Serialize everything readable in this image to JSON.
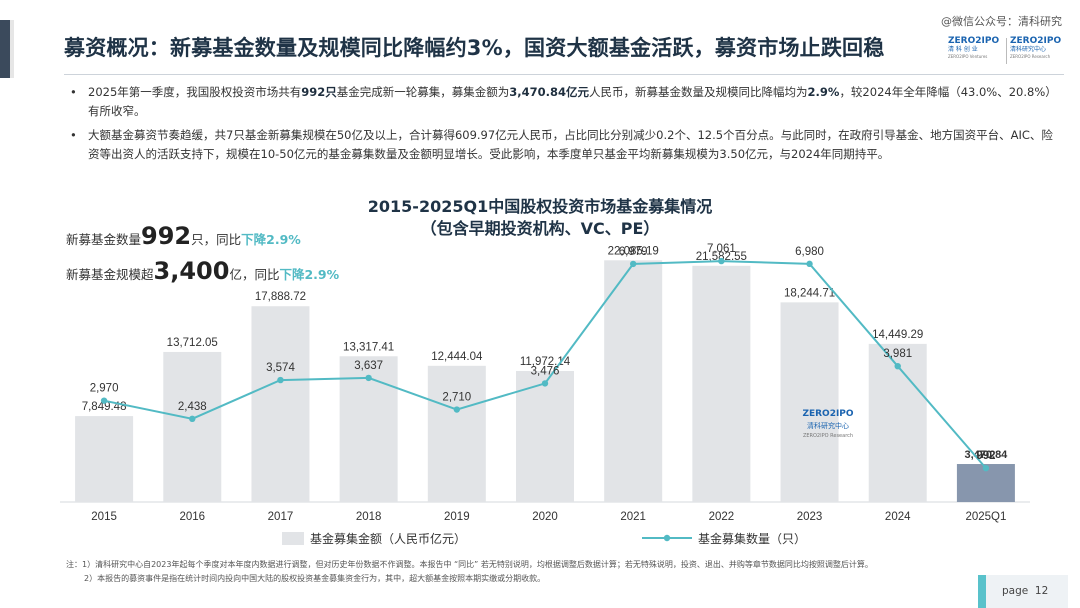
{
  "header": {
    "title": "募资概况：新募基金数量及规模同比降幅约3%，国资大额基金活跃，募资市场止跌回稳",
    "watermark": "@微信公众号：清科研究",
    "logo_left": {
      "line1": "ZERO2IPO",
      "line2": "清 科 创 业",
      "line3": "ZERO2IPO Ventures"
    },
    "logo_right": {
      "line1": "ZERO2IPO",
      "line2": "清科研究中心",
      "line3": "ZERO2IPO Research"
    }
  },
  "bullets": [
    {
      "marker": "•",
      "parts": [
        {
          "t": "2025年第一季度，我国股权投资市场共有",
          "b": false
        },
        {
          "t": "992只",
          "b": true
        },
        {
          "t": "基金完成新一轮募集，募集金额为",
          "b": false
        },
        {
          "t": "3,470.84亿元",
          "b": true
        },
        {
          "t": "人民币，新募基金数量及规模同比降幅均为",
          "b": false
        },
        {
          "t": "2.9%",
          "b": true
        },
        {
          "t": "，较2024年全年降幅（43.0%、20.8%）有所收窄。",
          "b": false
        }
      ]
    },
    {
      "marker": "•",
      "parts": [
        {
          "t": "大额基金募资节奏趋缓，共7只基金新募集规模在50亿及以上，合计募得609.97亿元人民币，占比同比分别减少0.2个、12.5个百分点。与此同时，在政府引导基金、地方国资平台、AIC、险资等出资人的活跃支持下，规模在10-50亿元的基金募集数量及金额明显增长。受此影响，本季度单只基金平均新募集规模为3.50亿元，与2024年同期持平。",
          "b": false
        }
      ]
    }
  ],
  "summary": {
    "count_prefix": "新募基金数量",
    "count_value": "992",
    "count_unit": "只，同比",
    "count_change": "下降2.9%",
    "amount_prefix": "新募基金规模超",
    "amount_value": "3,400",
    "amount_unit": "亿，同比",
    "amount_change": "下降2.9%"
  },
  "chart_data": {
    "type": "bar+line",
    "title": "2015-2025Q1中国股权投资市场基金募集情况",
    "subtitle": "（包含早期投资机构、VC、PE）",
    "categories": [
      "2015",
      "2016",
      "2017",
      "2018",
      "2019",
      "2020",
      "2021",
      "2022",
      "2023",
      "2024",
      "2025Q1"
    ],
    "series": [
      {
        "name": "基金募集金额（人民币亿元）",
        "type": "bar",
        "values": [
          7849.48,
          13712.05,
          17888.72,
          13317.41,
          12444.04,
          11972.14,
          22085.19,
          21582.55,
          18244.71,
          14449.29,
          3470.84
        ],
        "labels": [
          "7,849.48",
          "13,712.05",
          "17,888.72",
          "13,317.41",
          "12,444.04",
          "11,972.14",
          "22,085.19",
          "21,582.55",
          "18,244.71",
          "14,449.29",
          "3,470.84"
        ]
      },
      {
        "name": "基金募集数量（只）",
        "type": "line",
        "values": [
          2970,
          2438,
          3574,
          3637,
          2710,
          3476,
          6979,
          7061,
          6980,
          3981,
          992
        ],
        "labels": [
          "2,970",
          "2,438",
          "3,574",
          "3,637",
          "2,710",
          "3,476",
          "6,979",
          "7,061",
          "6,980",
          "3,981",
          "992"
        ]
      }
    ],
    "bar_ylim": [
      0,
      26500
    ],
    "line_ylim": [
      0,
      8500
    ],
    "colors": {
      "bar": "#e2e4e7",
      "bar_highlight": "#8796ad",
      "line": "#52bac4",
      "title": "#1f3346"
    },
    "watermark": {
      "line1": "ZERO2IPO",
      "line2": "清科研究中心",
      "line3": "ZERO2IPO Research"
    }
  },
  "notes": [
    "注：1）清科研究中心自2023年起每个季度对本年度内数据进行调整，但对历史年份数据不作调整。本报告中 “同比” 若无特别说明，均根据调整后数据计算；若无特殊说明，投资、退出、并购等章节数据同比均按照调整后计算。",
    "2）本报告的募资事件是指在统计时间内投向中国大陆的股权投资基金募集资金行为，其中，超大额基金按照本期实缴或分期收款。"
  ],
  "page": {
    "label": "page",
    "number": "12"
  }
}
